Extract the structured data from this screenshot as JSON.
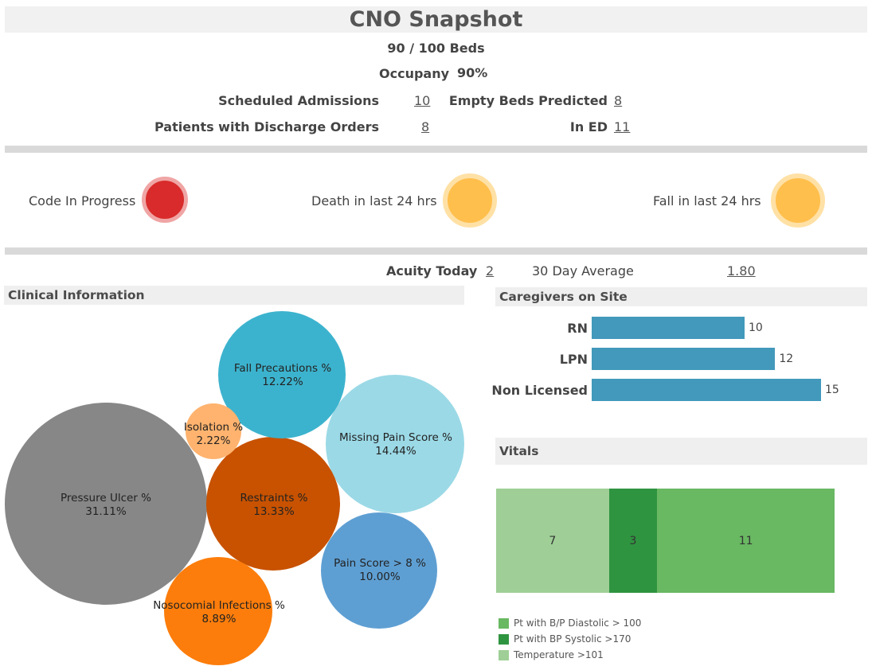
{
  "header": {
    "title": "CNO Snapshot",
    "beds": "90 / 100 Beds",
    "occupancy_label": "Occupany",
    "occupancy_value": "90%",
    "scheduled_admissions_label": "Scheduled Admissions",
    "scheduled_admissions_value": "10",
    "empty_beds_label": "Empty Beds Predicted",
    "empty_beds_value": "8",
    "discharge_label": "Patients with Discharge Orders",
    "discharge_value": "8",
    "in_ed_label": "In ED",
    "in_ed_value": "11"
  },
  "alerts": [
    {
      "label": "Code In Progress",
      "status": "red",
      "color": "#d92b2b"
    },
    {
      "label": "Death in last 24 hrs",
      "status": "amber",
      "color": "#ffbf4d"
    },
    {
      "label": "Fall in last 24 hrs",
      "status": "amber",
      "color": "#ffbf4d"
    }
  ],
  "acuity": {
    "today_label": "Acuity Today",
    "today_value": "2",
    "avg_label": "30 Day Average",
    "avg_value": "1.80"
  },
  "clinical": {
    "title": "Clinical Information",
    "bubbles": [
      {
        "name": "Pressure Ulcer %",
        "value": "31.11%",
        "pct": 31.11,
        "color": "#878787"
      },
      {
        "name": "Missing Pain Score %",
        "value": "14.44%",
        "pct": 14.44,
        "color": "#9bd9e6"
      },
      {
        "name": "Restraints %",
        "value": "13.33%",
        "pct": 13.33,
        "color": "#c85200"
      },
      {
        "name": "Fall Precautions %",
        "value": "12.22%",
        "pct": 12.22,
        "color": "#3cb3ce"
      },
      {
        "name": "Pain Score > 8 %",
        "value": "10.00%",
        "pct": 10.0,
        "color": "#5e9fd3"
      },
      {
        "name": "Nosocomial Infections %",
        "value": "8.89%",
        "pct": 8.89,
        "color": "#fc7d0b"
      },
      {
        "name": "Isolation %",
        "value": "2.22%",
        "pct": 2.22,
        "color": "#ffb36e"
      }
    ]
  },
  "caregivers": {
    "title": "Caregivers on Site",
    "color": "#4299bb",
    "rows": [
      {
        "label": "RN",
        "value": "10",
        "n": 10
      },
      {
        "label": "LPN",
        "value": "12",
        "n": 12
      },
      {
        "label": "Non Licensed",
        "value": "15",
        "n": 15
      }
    ]
  },
  "vitals": {
    "title": "Vitals",
    "segments": [
      {
        "value": "7",
        "n": 7,
        "color": "#9fcf96"
      },
      {
        "value": "3",
        "n": 3,
        "color": "#2f9440"
      },
      {
        "value": "11",
        "n": 11,
        "color": "#69b862"
      }
    ],
    "legend": [
      {
        "label": "Pt with B/P Diastolic > 100",
        "color": "#69b862"
      },
      {
        "label": "Pt with BP Systolic >170",
        "color": "#2f9440"
      },
      {
        "label": "Temperature >101",
        "color": "#9fcf96"
      }
    ]
  }
}
